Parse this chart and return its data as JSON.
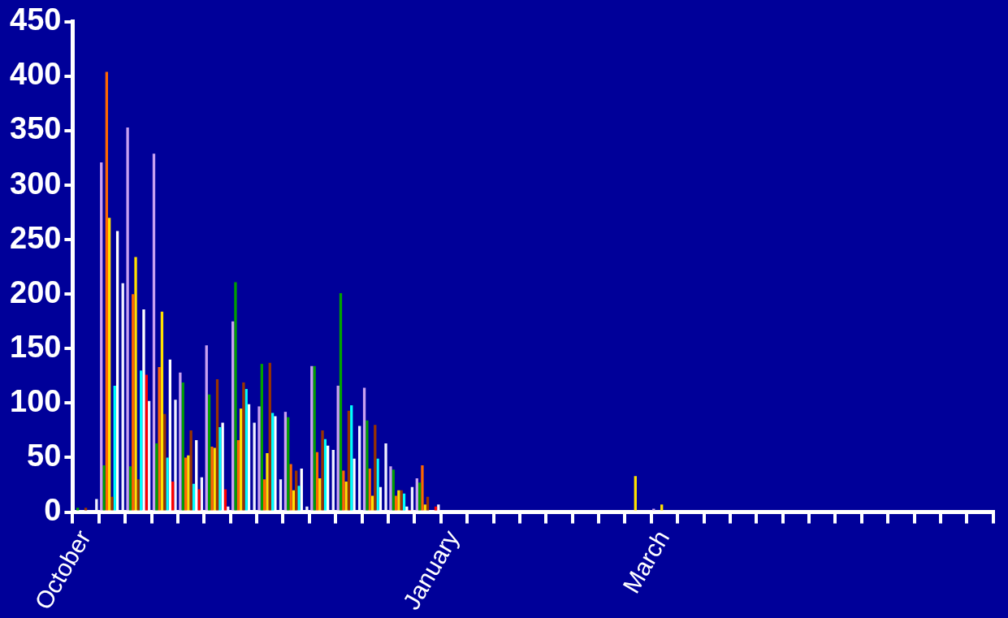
{
  "chart_data": {
    "type": "bar",
    "categories": [
      "October",
      null,
      null,
      null,
      null,
      null,
      null,
      null,
      null,
      null,
      null,
      null,
      null,
      null,
      "January",
      null,
      null,
      null,
      null,
      null,
      null,
      null,
      "March",
      null,
      null,
      null,
      null,
      null,
      null,
      null,
      null,
      null,
      null,
      null,
      null
    ],
    "series": [
      {
        "color": "#c8a0f0",
        "values": [
          0,
          321,
          353,
          329,
          128,
          153,
          175,
          97,
          92,
          134,
          116,
          114,
          42,
          31,
          0,
          0,
          0,
          0,
          0,
          0,
          0,
          0,
          3,
          0,
          0,
          0,
          0,
          0,
          0,
          0,
          0,
          0,
          0,
          0,
          0
        ]
      },
      {
        "color": "#00a000",
        "values": [
          4,
          43,
          42,
          63,
          119,
          108,
          211,
          136,
          87,
          134,
          201,
          84,
          39,
          27,
          0,
          0,
          0,
          0,
          0,
          0,
          0,
          0,
          0,
          0,
          0,
          0,
          0,
          0,
          0,
          0,
          0,
          0,
          0,
          0,
          0
        ]
      },
      {
        "color": "#ff6600",
        "values": [
          0,
          404,
          200,
          133,
          50,
          60,
          66,
          30,
          44,
          55,
          38,
          40,
          15,
          43,
          0,
          0,
          0,
          0,
          0,
          0,
          0,
          0,
          0,
          0,
          0,
          0,
          0,
          0,
          0,
          0,
          0,
          0,
          0,
          0,
          0
        ]
      },
      {
        "color": "#ffe000",
        "values": [
          0,
          270,
          234,
          184,
          52,
          59,
          95,
          54,
          20,
          31,
          28,
          15,
          20,
          7,
          0,
          0,
          0,
          0,
          0,
          0,
          0,
          33,
          7,
          0,
          0,
          0,
          0,
          0,
          0,
          0,
          0,
          0,
          0,
          0,
          0
        ]
      },
      {
        "color": "#993300",
        "values": [
          4,
          14,
          30,
          90,
          75,
          122,
          119,
          137,
          38,
          75,
          93,
          80,
          20,
          14,
          0,
          0,
          0,
          0,
          0,
          0,
          0,
          0,
          0,
          0,
          0,
          0,
          0,
          0,
          0,
          0,
          0,
          0,
          0,
          0,
          0
        ]
      },
      {
        "color": "#00ffff",
        "values": [
          0,
          116,
          130,
          50,
          26,
          78,
          113,
          91,
          24,
          67,
          98,
          49,
          17,
          0,
          0,
          0,
          0,
          0,
          0,
          0,
          0,
          0,
          0,
          0,
          0,
          0,
          0,
          0,
          0,
          0,
          0,
          0,
          0,
          0,
          0
        ]
      },
      {
        "color": "#ffffff",
        "values": [
          0,
          258,
          186,
          140,
          66,
          82,
          99,
          88,
          40,
          61,
          49,
          23,
          5,
          0,
          0,
          0,
          0,
          0,
          0,
          0,
          0,
          0,
          0,
          0,
          0,
          0,
          0,
          0,
          0,
          0,
          0,
          0,
          0,
          0,
          0
        ]
      },
      {
        "color": "#ff0000",
        "values": [
          0,
          0,
          126,
          28,
          21,
          21,
          0,
          0,
          0,
          0,
          0,
          0,
          2,
          5,
          0,
          0,
          0,
          0,
          0,
          0,
          0,
          0,
          0,
          0,
          0,
          0,
          0,
          0,
          0,
          0,
          0,
          0,
          0,
          0,
          0
        ]
      },
      {
        "color": "#f0f0ff",
        "values": [
          12,
          210,
          102,
          103,
          32,
          5,
          82,
          30,
          5,
          57,
          79,
          63,
          23,
          7,
          0,
          0,
          0,
          0,
          0,
          0,
          0,
          0,
          0,
          0,
          0,
          0,
          0,
          0,
          0,
          0,
          0,
          0,
          0,
          0,
          0
        ]
      }
    ],
    "ylim": [
      0,
      450
    ],
    "yticks": [
      0,
      50,
      100,
      150,
      200,
      250,
      300,
      350,
      400,
      450
    ],
    "grid": false,
    "legend": false
  }
}
